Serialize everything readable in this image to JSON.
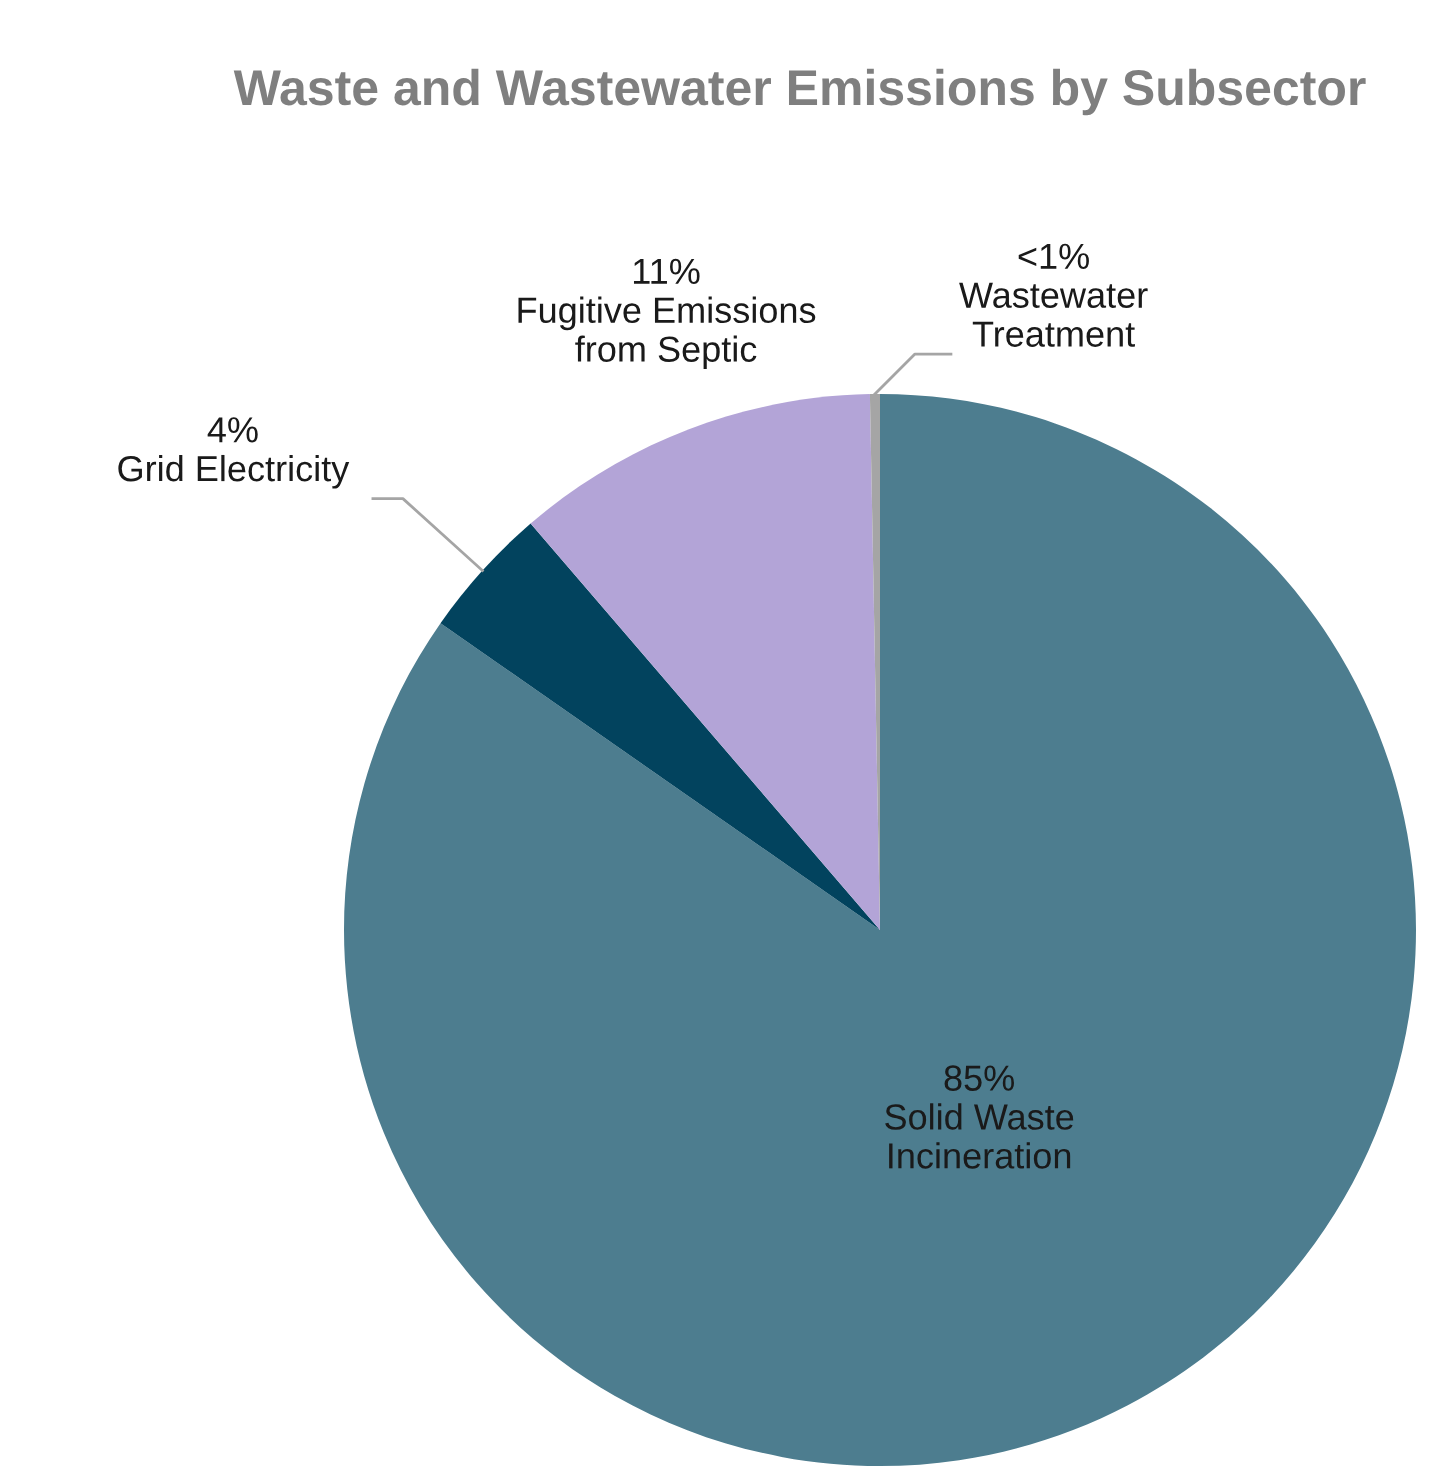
{
  "chart_data": {
    "type": "pie",
    "title": "Waste and Wastewater Emissions by Subsector",
    "categories": [
      "Solid Waste\nIncineration",
      "Grid Electricity",
      "Fugitive Emissions\nfrom Septic",
      "Wastewater\nTreatment"
    ],
    "values": [
      84.7,
      4,
      11,
      0.3
    ],
    "value_labels": [
      "85%",
      "4%",
      "11%",
      "<1%"
    ],
    "colors": [
      "#4d7d8f",
      "#02435e",
      "#b3a4d7",
      "#a5a5a5"
    ],
    "legend": false
  }
}
